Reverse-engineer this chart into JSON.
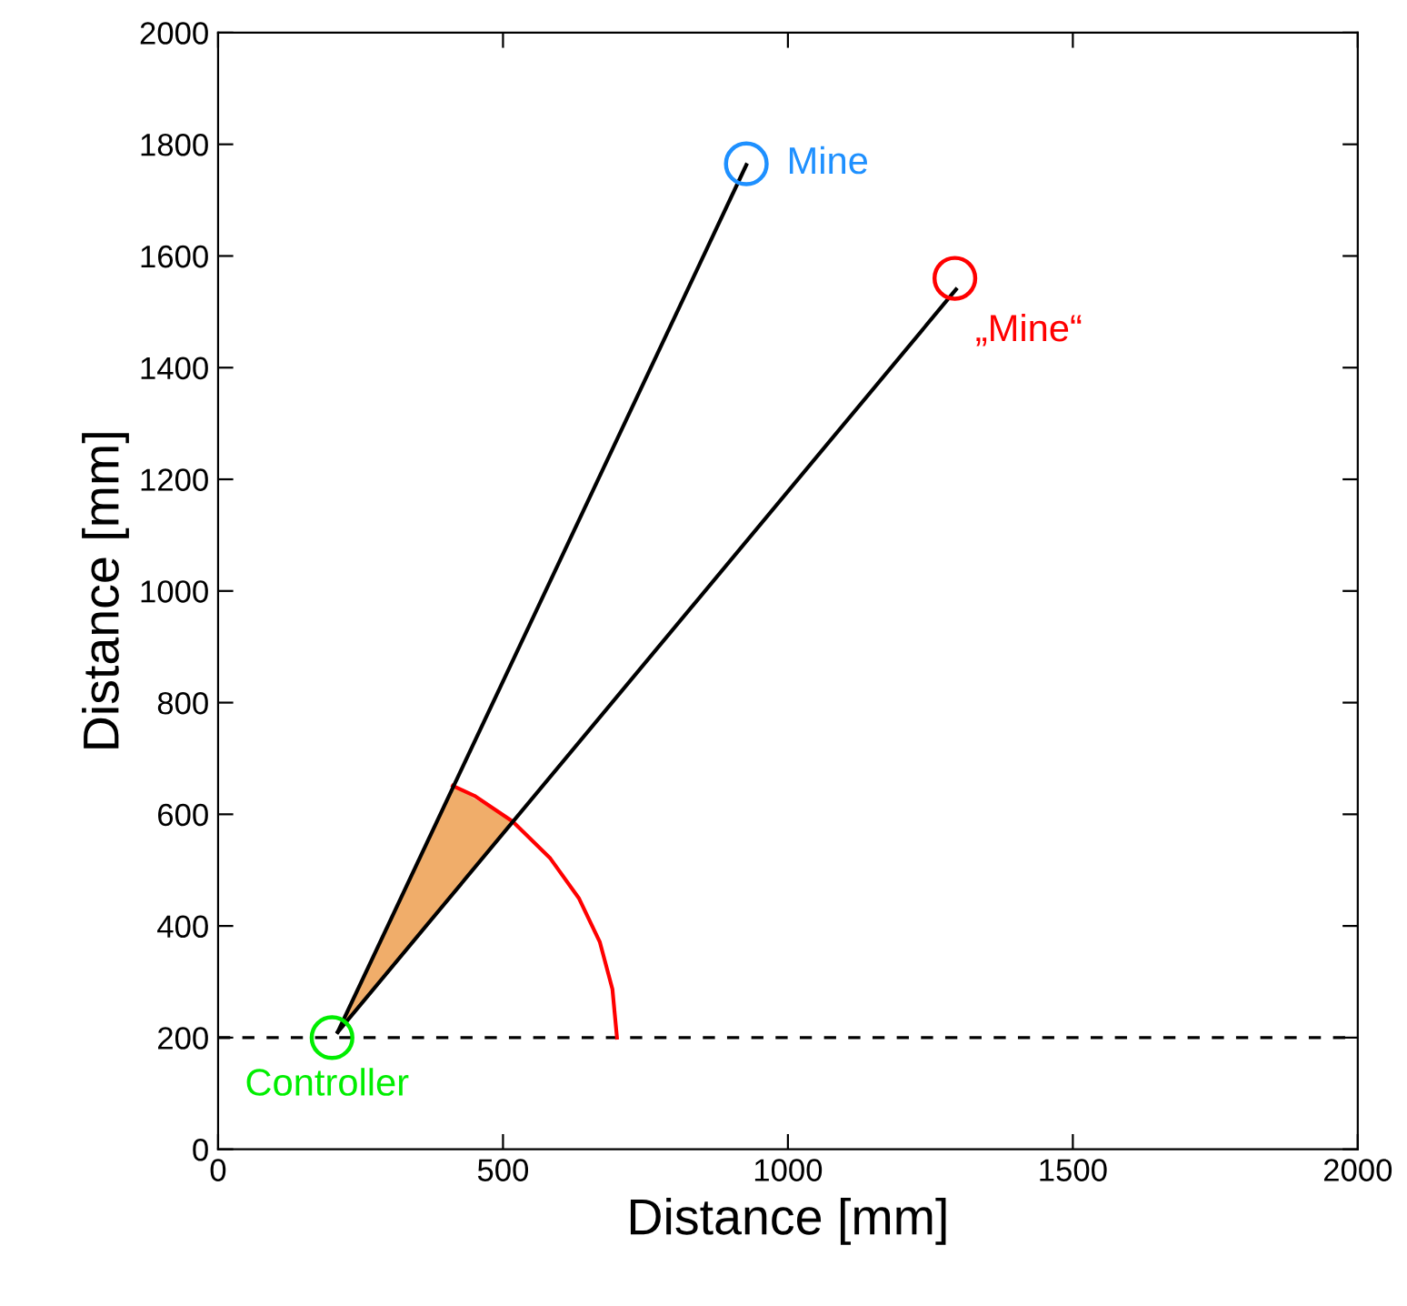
{
  "chart_data": {
    "type": "line",
    "xlabel": "Distance [mm]",
    "ylabel": "Distance [mm]",
    "xlim": [
      0,
      2000
    ],
    "ylim": [
      0,
      2000
    ],
    "xticks": [
      0,
      500,
      1000,
      1500,
      2000
    ],
    "yticks": [
      0,
      200,
      400,
      600,
      800,
      1000,
      1200,
      1400,
      1600,
      1800,
      2000
    ],
    "grid": false,
    "legend": false,
    "ref_lines": [
      {
        "axis": "y",
        "value": 200,
        "color": "#000000",
        "line_style": "dashed"
      }
    ],
    "series": [
      {
        "type": "area",
        "color": "#f0ad6a",
        "x": [
          210,
          412,
          517,
          210
        ],
        "values": [
          210,
          651,
          587,
          210
        ]
      },
      {
        "color": "#ff0000",
        "x": [
          700,
          692,
          670,
          633,
          583,
          517,
          450,
          412
        ],
        "values": [
          200,
          287,
          371,
          450,
          521,
          587,
          633,
          651
        ]
      },
      {
        "color": "#000000",
        "x": [
          210,
          927
        ],
        "values": [
          210,
          1763
        ]
      },
      {
        "color": "#000000",
        "x": [
          210,
          1295
        ],
        "values": [
          210,
          1540
        ]
      },
      {
        "type": "scatter",
        "name": "Mine",
        "color": "#1e90ff",
        "marker": "circle",
        "x": [
          927
        ],
        "values": [
          1765
        ]
      },
      {
        "type": "scatter",
        "name": "„Mine“",
        "color": "#ff0000",
        "marker": "circle",
        "x": [
          1293
        ],
        "values": [
          1560
        ]
      },
      {
        "type": "scatter",
        "name": "Controller",
        "color": "#00ee00",
        "marker": "circle",
        "x": [
          200
        ],
        "values": [
          200
        ]
      }
    ]
  }
}
